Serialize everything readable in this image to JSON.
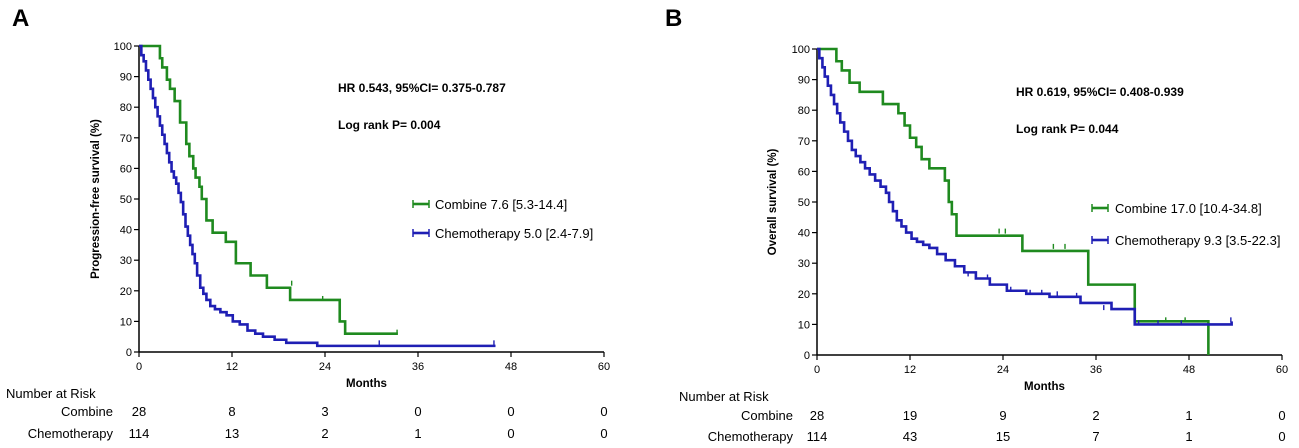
{
  "chart_data": [
    {
      "type": "line",
      "panel": "A",
      "xlabel": "Months",
      "ylabel": "Progression-free survival (%)",
      "xlim": [
        0,
        60
      ],
      "ylim": [
        0,
        100
      ],
      "xticks": [
        0,
        12,
        24,
        36,
        48,
        60
      ],
      "yticks": [
        0,
        10,
        20,
        30,
        40,
        50,
        60,
        70,
        80,
        90,
        100
      ],
      "stats": {
        "hr": "HR 0.543,  95%CI= 0.375-0.787",
        "logrank": "Log rank P= 0.004"
      },
      "series": [
        {
          "name": "Combine",
          "legend": "Combine 7.6 [5.3-14.4]",
          "color": "#1f8a1f",
          "x": [
            0,
            2.7,
            3,
            3.6,
            4,
            4.6,
            5.3,
            6.1,
            6.5,
            7,
            7.3,
            7.8,
            8.1,
            8.7,
            9.5,
            11.2,
            12.5,
            14.4,
            16.5,
            19.5,
            25.9,
            26.6,
            33.4
          ],
          "y": [
            100,
            96,
            93,
            89,
            86,
            82,
            75,
            68,
            64,
            60,
            57,
            54,
            50,
            43,
            39,
            36,
            29,
            25,
            21,
            17,
            10,
            6,
            6
          ],
          "censor": [
            [
              19.7,
              22
            ],
            [
              23.7,
              17
            ],
            [
              33.3,
              6
            ]
          ]
        },
        {
          "name": "Chemotherapy",
          "legend": "Chemotherapy 5.0 [2.4-7.9]",
          "color": "#1f1fb4",
          "x": [
            0,
            0.3,
            0.6,
            0.9,
            1.2,
            1.5,
            1.8,
            2.1,
            2.4,
            2.7,
            3.0,
            3.3,
            3.6,
            3.9,
            4.2,
            4.5,
            4.8,
            5.1,
            5.4,
            5.7,
            6.0,
            6.3,
            6.6,
            6.9,
            7.2,
            7.5,
            7.9,
            8.3,
            8.7,
            9.2,
            9.8,
            10.5,
            11.3,
            12.1,
            13.0,
            14.0,
            15.0,
            16.0,
            17.5,
            19.0,
            23.0,
            46.0
          ],
          "y": [
            100,
            97,
            95,
            92,
            89,
            86,
            83,
            80,
            77,
            74,
            71,
            68,
            65,
            62,
            59,
            57,
            55,
            52,
            49,
            45,
            41,
            38,
            35,
            32,
            29,
            25,
            21,
            19,
            17,
            15,
            14,
            13,
            12,
            10,
            9,
            7,
            6,
            5,
            4,
            3,
            2,
            2
          ],
          "censor": [
            [
              31,
              2.5
            ],
            [
              45.8,
              2.5
            ]
          ]
        }
      ],
      "risk_table": {
        "title": "Number at Risk",
        "times": [
          0,
          12,
          24,
          36,
          48,
          60
        ],
        "rows": [
          {
            "label": "Combine",
            "values": [
              "28",
              "8",
              "3",
              "0",
              "0",
              "0"
            ]
          },
          {
            "label": "Chemotherapy",
            "values": [
              "114",
              "13",
              "2",
              "1",
              "0",
              "0"
            ]
          }
        ]
      }
    },
    {
      "type": "line",
      "panel": "B",
      "xlabel": "Months",
      "ylabel": "Overall survival (%)",
      "xlim": [
        0,
        60
      ],
      "ylim": [
        0,
        100
      ],
      "xticks": [
        0,
        12,
        24,
        36,
        48,
        60
      ],
      "yticks": [
        0,
        10,
        20,
        30,
        40,
        50,
        60,
        70,
        80,
        90,
        100
      ],
      "stats": {
        "hr": "HR 0.619,  95%CI= 0.408-0.939",
        "logrank": "Log rank P= 0.044"
      },
      "series": [
        {
          "name": "Combine",
          "legend": "Combine 17.0 [10.4-34.8]",
          "color": "#1f8a1f",
          "x": [
            0,
            2.5,
            3.2,
            4.2,
            5.5,
            8.5,
            10.5,
            11.3,
            12,
            12.8,
            13.5,
            14.5,
            16.5,
            17,
            17.4,
            18,
            26.5,
            35,
            41,
            50.5
          ],
          "y": [
            100,
            96,
            93,
            89,
            86,
            82,
            79,
            75,
            71,
            68,
            64,
            61,
            57,
            50,
            46,
            39,
            34,
            23,
            11,
            0
          ],
          "censor": [
            [
              23.5,
              40
            ],
            [
              24.3,
              40
            ],
            [
              30.5,
              35
            ],
            [
              32,
              35
            ],
            [
              45,
              11
            ],
            [
              47.5,
              11
            ]
          ]
        },
        {
          "name": "Chemotherapy",
          "legend": "Chemotherapy 9.3 [3.5-22.3]",
          "color": "#1f1fb4",
          "x": [
            0,
            0.3,
            0.7,
            1.0,
            1.4,
            1.8,
            2.2,
            2.6,
            3.0,
            3.5,
            4.0,
            4.5,
            5.0,
            5.6,
            6.2,
            6.8,
            7.5,
            8.2,
            8.9,
            9.3,
            9.8,
            10.3,
            10.9,
            11.5,
            12.2,
            12.9,
            13.7,
            14.5,
            15.5,
            16.6,
            17.8,
            19.0,
            20.5,
            22.3,
            24.5,
            27.0,
            30.0,
            34.0,
            38.0,
            41.0,
            53.5
          ],
          "y": [
            100,
            97,
            94,
            91,
            88,
            85,
            82,
            79,
            76,
            73,
            70,
            67,
            65,
            63,
            61,
            59,
            57,
            55,
            53,
            50,
            47,
            44,
            42,
            40,
            38,
            37,
            36,
            35,
            33,
            31,
            29,
            27,
            25,
            23,
            21,
            20,
            19,
            17,
            15,
            10,
            11
          ],
          "censor": [
            [
              19.5,
              26
            ],
            [
              22,
              25
            ],
            [
              25,
              21
            ],
            [
              27.5,
              20
            ],
            [
              29,
              20
            ],
            [
              31,
              19.5
            ],
            [
              33.5,
              19
            ],
            [
              37,
              15
            ],
            [
              41.5,
              10
            ],
            [
              44,
              10
            ],
            [
              47,
              10
            ],
            [
              53.4,
              11
            ]
          ]
        }
      ],
      "risk_table": {
        "title": "Number at Risk",
        "times": [
          0,
          12,
          24,
          36,
          48,
          60
        ],
        "rows": [
          {
            "label": "Combine",
            "values": [
              "28",
              "19",
              "9",
              "2",
              "1",
              "0"
            ]
          },
          {
            "label": "Chemotherapy",
            "values": [
              "114",
              "43",
              "15",
              "7",
              "1",
              "0"
            ]
          }
        ]
      }
    }
  ]
}
